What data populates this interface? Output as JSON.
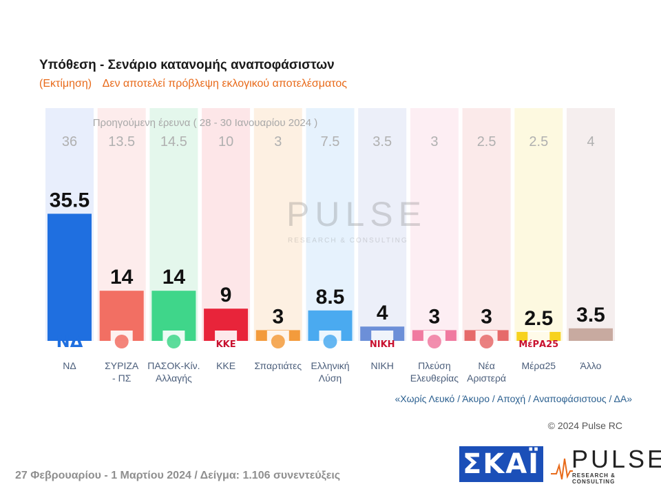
{
  "title": "Υπόθεση - Σενάριο κατανομής αναποφάσιστων",
  "subtitle": {
    "part1": "(Εκτίμηση)",
    "part2": "Δεν αποτελεί πρόβλεψη εκλογικού αποτελέσματος"
  },
  "previous_survey_label": "Προηγούμενη έρευνα ( 28 - 30 Ιανουαρίου 2024 )",
  "watermark": {
    "brand": "PULSE",
    "tagline": "RESEARCH & CONSULTING"
  },
  "chart_data": {
    "type": "bar",
    "categories": [
      "ΝΔ",
      "ΣΥΡΙΖΑ - ΠΣ",
      "ΠΑΣΟΚ-Κίν. Αλλαγής",
      "ΚΚΕ",
      "Σπαρτιάτες",
      "Ελληνική Λύση",
      "ΝΙΚΗ",
      "Πλεύση Ελευθερίας",
      "Νέα Αριστερά",
      "Μέρα25",
      "Άλλο"
    ],
    "category_lines": [
      [
        "ΝΔ"
      ],
      [
        "ΣΥΡΙΖΑ",
        "- ΠΣ"
      ],
      [
        "ΠΑΣΟΚ-Κίν.",
        "Αλλαγής"
      ],
      [
        "ΚΚΕ"
      ],
      [
        "Σπαρτιάτες"
      ],
      [
        "Ελληνική",
        "Λύση"
      ],
      [
        "ΝΙΚΗ"
      ],
      [
        "Πλεύση",
        "Ελευθερίας"
      ],
      [
        "Νέα",
        "Αριστερά"
      ],
      [
        "Μέρα25"
      ],
      [
        "Άλλο"
      ]
    ],
    "values": [
      35.5,
      14,
      14,
      9,
      3,
      8.5,
      4,
      3,
      3,
      2.5,
      3.5
    ],
    "value_labels": [
      "35.5",
      "14",
      "14",
      "9",
      "3",
      "8.5",
      "4",
      "3",
      "3",
      "2.5",
      "3.5"
    ],
    "previous_values": [
      36,
      13.5,
      14.5,
      10,
      3,
      7.5,
      3.5,
      3,
      2.5,
      2.5,
      4
    ],
    "previous_labels": [
      "36",
      "13.5",
      "14.5",
      "10",
      "3",
      "7.5",
      "3.5",
      "3",
      "2.5",
      "2.5",
      "4"
    ],
    "colors": [
      "#1f6fe0",
      "#f26f63",
      "#3fd68a",
      "#e8243a",
      "#f39b3c",
      "#4aaaf0",
      "#6c8fd8",
      "#f07aa0",
      "#e66a6a",
      "#f7d21e",
      "#c8aaa0"
    ],
    "background_colors": [
      "#e8eefc",
      "#fdecec",
      "#e4f7ec",
      "#fde6e8",
      "#fdf0e2",
      "#e6f2fd",
      "#eceff9",
      "#fdeef3",
      "#fbeaea",
      "#fdf9e0",
      "#f5eeee"
    ],
    "logos": [
      "nd-logo",
      "syriza-logo",
      "pasok-logo",
      "kke-logo",
      "spartiates-logo",
      "elliniki-lysi-logo",
      "niki-logo",
      "plefsi-logo",
      "nea-aristera-logo",
      "mera25-logo",
      "none"
    ],
    "logo_texts": [
      "ΝΔ",
      "",
      "",
      "ΚΚΕ",
      "",
      "",
      "ΝΙΚΗ",
      "",
      "",
      "ΜέΡΑ25",
      ""
    ],
    "ylim": [
      0,
      40
    ]
  },
  "footnote": "«Χωρίς Λευκό / Άκυρο / Αποχή / Αναποφάσιστους / ΔΑ»",
  "copyright": "© 2024 Pulse RC",
  "footer": "27 Φεβρουαρίου - 1 Μαρτίου 2024  /  Δείγμα:  1.106 συνεντεύξεις",
  "logos": {
    "skai": "ΣΚΑΪ",
    "pulse": "PULSE",
    "pulse_tagline": "RESEARCH & CONSULTING"
  }
}
